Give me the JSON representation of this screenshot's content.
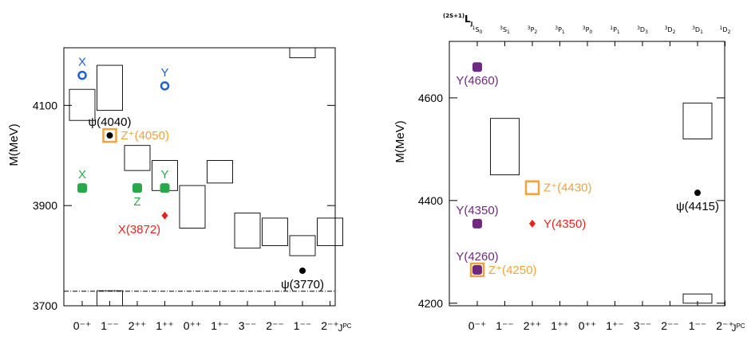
{
  "colors": {
    "black": "#000000",
    "blue": "#1f5fd0",
    "green": "#27a84a",
    "red": "#e8231b",
    "orange": "#f2a33a",
    "purple": "#6e2a7e"
  },
  "chart_data": [
    {
      "type": "scatter",
      "ylabel": "M(MeV)",
      "xlabel": "J",
      "xlabel_sup": "PC",
      "ylim": [
        3700,
        4215
      ],
      "yticks": [
        "3700",
        "3900",
        "4100"
      ],
      "ytick_values": [
        3700,
        3900,
        4100
      ],
      "categories": [
        "0⁻⁺",
        "1⁻⁻",
        "2⁺⁺",
        "1⁺⁺",
        "0⁺⁺",
        "1⁺⁻",
        "3⁻⁻",
        "2⁻⁻",
        "1⁻⁻",
        "2⁻⁺"
      ],
      "threshold_mev": 3729,
      "boxes": [
        {
          "cat": 0,
          "low": 4070,
          "high": 4132
        },
        {
          "cat": 1,
          "low": 4090,
          "high": 4180
        },
        {
          "cat": 1,
          "low": 3700,
          "high": 3730
        },
        {
          "cat": 2,
          "low": 3970,
          "high": 4020
        },
        {
          "cat": 3,
          "low": 3930,
          "high": 3990
        },
        {
          "cat": 4,
          "low": 3855,
          "high": 3940
        },
        {
          "cat": 5,
          "low": 3945,
          "high": 3990
        },
        {
          "cat": 6,
          "low": 3815,
          "high": 3885
        },
        {
          "cat": 7,
          "low": 3820,
          "high": 3875
        },
        {
          "cat": 8,
          "low": 3800,
          "high": 3840
        },
        {
          "cat": 8,
          "low": 4195,
          "high": 4215
        },
        {
          "cat": 9,
          "low": 3820,
          "high": 3875
        }
      ],
      "points": [
        {
          "cat": 0,
          "y": 4160,
          "marker": "ring",
          "color": "blue",
          "label": "X",
          "label_pos": "above"
        },
        {
          "cat": 3,
          "y": 4139,
          "marker": "ring",
          "color": "blue",
          "label": "Y",
          "label_pos": "above"
        },
        {
          "cat": 0,
          "y": 3935,
          "marker": "rounded-square",
          "color": "green",
          "label": "X",
          "label_pos": "above"
        },
        {
          "cat": 2,
          "y": 3935,
          "marker": "rounded-square",
          "color": "green",
          "label": "Z",
          "label_pos": "below"
        },
        {
          "cat": 3,
          "y": 3935,
          "marker": "rounded-square",
          "color": "green",
          "label": "Y",
          "label_pos": "above"
        },
        {
          "cat": 1,
          "y": 4040,
          "marker": "dot",
          "color": "black",
          "label": "ψ(4040)",
          "label_pos": "above"
        },
        {
          "cat": 1,
          "y": 4040,
          "marker": "open-square",
          "color": "orange",
          "label": "Z⁺(4050)",
          "label_pos": "right"
        },
        {
          "cat": 3,
          "y": 3880,
          "marker": "diamond",
          "color": "red",
          "label": "X(3872)",
          "label_pos": "below-left"
        },
        {
          "cat": 8,
          "y": 3770,
          "marker": "dot",
          "color": "black",
          "label": "ψ(3770)",
          "label_pos": "below"
        }
      ]
    },
    {
      "type": "scatter",
      "ylabel": "M(MeV)",
      "xlabel": "J",
      "xlabel_sup": "PC",
      "top_axis_label": {
        "pre": "(2S+1)",
        "main": "L",
        "sub": "J"
      },
      "ylim": [
        4195,
        4710
      ],
      "yticks": [
        "4200",
        "4400",
        "4600"
      ],
      "ytick_values": [
        4200,
        4400,
        4600
      ],
      "categories": [
        "0⁻⁺",
        "1⁻⁻",
        "2⁺⁺",
        "1⁺⁺",
        "0⁺⁺",
        "1⁺⁻",
        "3⁻⁻",
        "2⁻⁻",
        "1⁻⁻",
        "2⁻⁺"
      ],
      "top_labels": [
        {
          "sup": "1",
          "main": "S",
          "sub": "0"
        },
        {
          "sup": "3",
          "main": "S",
          "sub": "1"
        },
        {
          "sup": "3",
          "main": "P",
          "sub": "2"
        },
        {
          "sup": "3",
          "main": "P",
          "sub": "1"
        },
        {
          "sup": "3",
          "main": "P",
          "sub": "0"
        },
        {
          "sup": "1",
          "main": "P",
          "sub": "1"
        },
        {
          "sup": "3",
          "main": "D",
          "sub": "3"
        },
        {
          "sup": "3",
          "main": "D",
          "sub": "2"
        },
        {
          "sup": "3",
          "main": "D",
          "sub": "1"
        },
        {
          "sup": "1",
          "main": "D",
          "sub": "2"
        }
      ],
      "boxes": [
        {
          "cat": 1,
          "low": 4450,
          "high": 4560
        },
        {
          "cat": 8,
          "low": 4520,
          "high": 4590
        },
        {
          "cat": 8,
          "low": 4200,
          "high": 4218
        }
      ],
      "points": [
        {
          "cat": 0,
          "y": 4660,
          "marker": "rounded-square",
          "color": "purple",
          "label": "Y(4660)",
          "label_pos": "below"
        },
        {
          "cat": 0,
          "y": 4355,
          "marker": "rounded-square",
          "color": "purple",
          "label": "Y(4350)",
          "label_pos": "above"
        },
        {
          "cat": 0,
          "y": 4265,
          "marker": "open-square",
          "color": "orange",
          "label": "Z⁺(4250)",
          "label_pos": "right"
        },
        {
          "cat": 0,
          "y": 4265,
          "marker": "rounded-square",
          "color": "purple",
          "label": "Y(4260)",
          "label_pos": "above"
        },
        {
          "cat": 2,
          "y": 4425,
          "marker": "open-square",
          "color": "orange",
          "label": "Z⁺(4430)",
          "label_pos": "right"
        },
        {
          "cat": 2,
          "y": 4355,
          "marker": "diamond",
          "color": "red",
          "label": "Y(4350)",
          "label_pos": "right"
        },
        {
          "cat": 8,
          "y": 4415,
          "marker": "dot",
          "color": "black",
          "label": "ψ(4415)",
          "label_pos": "below"
        }
      ]
    }
  ]
}
